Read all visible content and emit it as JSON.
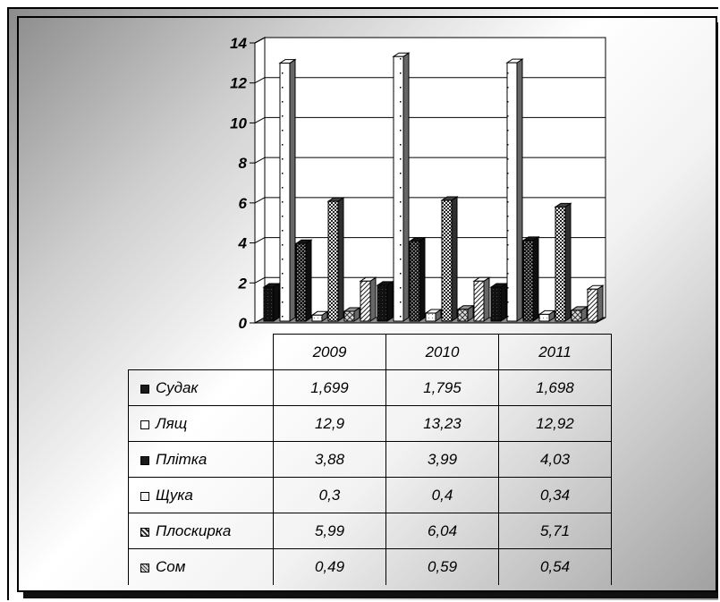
{
  "chart_data": {
    "type": "bar",
    "title": "",
    "xlabel": "",
    "ylabel": "",
    "ylim": [
      0,
      14
    ],
    "y_ticks": [
      "0",
      "2",
      "4",
      "6",
      "8",
      "10",
      "12",
      "14"
    ],
    "grid": true,
    "legend_placement": "table-below",
    "categories": [
      "2009",
      "2010",
      "2011"
    ],
    "series": [
      {
        "name": "Судак",
        "values": [
          1.699,
          1.795,
          1.698
        ],
        "labels": [
          "1,699",
          "1,795",
          "1,698"
        ],
        "color": "#1a1a1a",
        "pattern": "solid"
      },
      {
        "name": "Лящ",
        "values": [
          12.9,
          13.23,
          12.92
        ],
        "labels": [
          "12,9",
          "13,23",
          "12,92"
        ],
        "color": "#ffffff",
        "pattern": "dots"
      },
      {
        "name": "Плітка",
        "values": [
          3.88,
          3.99,
          4.03
        ],
        "labels": [
          "3,88",
          "3,99",
          "4,03"
        ],
        "color": "#1a1a1a",
        "pattern": "dense-dots"
      },
      {
        "name": "Щука",
        "values": [
          0.3,
          0.4,
          0.34
        ],
        "labels": [
          "0,3",
          "0,4",
          "0,34"
        ],
        "color": "#ffffff",
        "pattern": "light"
      },
      {
        "name": "Плоскирка",
        "values": [
          5.99,
          6.04,
          5.71
        ],
        "labels": [
          "5,99",
          "6,04",
          "5,71"
        ],
        "color": "#555555",
        "pattern": "checker"
      },
      {
        "name": "Сом",
        "values": [
          0.49,
          0.59,
          0.54
        ],
        "labels": [
          "0,49",
          "0,59",
          "0,54"
        ],
        "color": "#bbbbbb",
        "pattern": "cross"
      },
      {
        "name": "",
        "values": [
          2.0,
          2.0,
          1.6
        ],
        "labels": [],
        "color": "#ffffff",
        "pattern": "diagonal"
      }
    ]
  }
}
